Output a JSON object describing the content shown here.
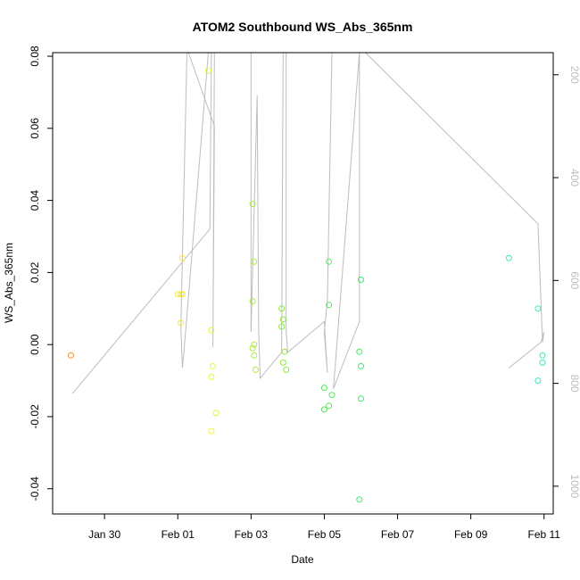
{
  "chart_data": {
    "type": "scatter",
    "title": "ATOM2 Southbound WS_Abs_365nm",
    "xlabel": "Date",
    "ylabel": "WS_Abs_365nm",
    "x_ticks": [
      {
        "label": "Jan 30",
        "value": "2019-01-30"
      },
      {
        "label": "Feb 01",
        "value": "2019-02-01"
      },
      {
        "label": "Feb 03",
        "value": "2019-02-03"
      },
      {
        "label": "Feb 05",
        "value": "2019-02-05"
      },
      {
        "label": "Feb 07",
        "value": "2019-02-07"
      },
      {
        "label": "Feb 09",
        "value": "2019-02-09"
      },
      {
        "label": "Feb 11",
        "value": "2019-02-11"
      }
    ],
    "xlim": [
      "2019-01-28 14:00",
      "2019-02-11 06:00"
    ],
    "ylim": [
      -0.047,
      0.081
    ],
    "y_ticks": [
      {
        "label": "-0.04",
        "value": -0.04
      },
      {
        "label": "-0.02",
        "value": -0.02
      },
      {
        "label": "0.00",
        "value": 0.0
      },
      {
        "label": "0.02",
        "value": 0.02
      },
      {
        "label": "0.04",
        "value": 0.04
      },
      {
        "label": "0.06",
        "value": 0.06
      },
      {
        "label": "0.08",
        "value": 0.08
      }
    ],
    "y2_ticks": [
      {
        "label": "200",
        "value": 200
      },
      {
        "label": "400",
        "value": 400
      },
      {
        "label": "600",
        "value": 600
      },
      {
        "label": "800",
        "value": 800
      },
      {
        "label": "1000",
        "value": 1000
      }
    ],
    "y2lim": [
      1054,
      157
    ],
    "y2_reversed": true,
    "grid": false,
    "points": [
      {
        "x": "2019-01-29 02:00",
        "y": -0.003,
        "color": "#ff8c1a"
      },
      {
        "x": "2019-02-01 00:00",
        "y": 0.014,
        "color": "#f4e83a"
      },
      {
        "x": "2019-02-01 02:00",
        "y": 0.014,
        "color": "#f4e83a"
      },
      {
        "x": "2019-02-01 03:00",
        "y": 0.014,
        "color": "#f4e83a"
      },
      {
        "x": "2019-02-01 02:00",
        "y": 0.006,
        "color": "#f4e83a"
      },
      {
        "x": "2019-02-01 03:00",
        "y": 0.024,
        "color": "#f4e83a"
      },
      {
        "x": "2019-02-01 20:00",
        "y": 0.076,
        "color": "#e9f53a"
      },
      {
        "x": "2019-02-01 22:00",
        "y": 0.004,
        "color": "#e9f53a"
      },
      {
        "x": "2019-02-01 23:00",
        "y": -0.006,
        "color": "#e9f53a"
      },
      {
        "x": "2019-02-01 22:00",
        "y": -0.009,
        "color": "#e9f53a"
      },
      {
        "x": "2019-02-02 01:00",
        "y": -0.019,
        "color": "#e9f53a"
      },
      {
        "x": "2019-02-01 22:00",
        "y": -0.024,
        "color": "#e9f53a"
      },
      {
        "x": "2019-02-03 01:00",
        "y": 0.039,
        "color": "#a8ee3c"
      },
      {
        "x": "2019-02-03 02:00",
        "y": 0.023,
        "color": "#a8ee3c"
      },
      {
        "x": "2019-02-03 01:00",
        "y": 0.012,
        "color": "#a8ee3c"
      },
      {
        "x": "2019-02-03 02:00",
        "y": 0.0,
        "color": "#a8ee3c"
      },
      {
        "x": "2019-02-03 01:00",
        "y": -0.001,
        "color": "#a8ee3c"
      },
      {
        "x": "2019-02-03 02:00",
        "y": -0.003,
        "color": "#a8ee3c"
      },
      {
        "x": "2019-02-03 03:00",
        "y": -0.007,
        "color": "#a8ee3c"
      },
      {
        "x": "2019-02-03 20:00",
        "y": 0.01,
        "color": "#8ae83e"
      },
      {
        "x": "2019-02-03 21:00",
        "y": 0.007,
        "color": "#8ae83e"
      },
      {
        "x": "2019-02-03 20:00",
        "y": 0.005,
        "color": "#8ae83e"
      },
      {
        "x": "2019-02-03 22:00",
        "y": -0.002,
        "color": "#8ae83e"
      },
      {
        "x": "2019-02-03 21:00",
        "y": -0.005,
        "color": "#8ae83e"
      },
      {
        "x": "2019-02-03 23:00",
        "y": -0.007,
        "color": "#8ae83e"
      },
      {
        "x": "2019-02-05 03:00",
        "y": 0.023,
        "color": "#55e857"
      },
      {
        "x": "2019-02-05 03:00",
        "y": 0.011,
        "color": "#55e857"
      },
      {
        "x": "2019-02-05 00:00",
        "y": -0.012,
        "color": "#55e857"
      },
      {
        "x": "2019-02-05 05:00",
        "y": -0.014,
        "color": "#55e857"
      },
      {
        "x": "2019-02-05 03:00",
        "y": -0.017,
        "color": "#55e857"
      },
      {
        "x": "2019-02-05 00:00",
        "y": -0.018,
        "color": "#55e857"
      },
      {
        "x": "2019-02-06 00:00",
        "y": 0.018,
        "color": "#3de86a"
      },
      {
        "x": "2019-02-05 23:00",
        "y": -0.002,
        "color": "#3de86a"
      },
      {
        "x": "2019-02-06 00:00",
        "y": -0.006,
        "color": "#3de86a"
      },
      {
        "x": "2019-02-06 00:00",
        "y": -0.015,
        "color": "#3de86a"
      },
      {
        "x": "2019-02-05 23:00",
        "y": -0.043,
        "color": "#3de86a"
      },
      {
        "x": "2019-02-10 01:00",
        "y": 0.024,
        "color": "#3ae8ac"
      },
      {
        "x": "2019-02-10 20:00",
        "y": 0.01,
        "color": "#35e6bf"
      },
      {
        "x": "2019-02-10 23:00",
        "y": -0.003,
        "color": "#35e6bf"
      },
      {
        "x": "2019-02-10 23:00",
        "y": -0.005,
        "color": "#35e6bf"
      },
      {
        "x": "2019-02-10 20:00",
        "y": -0.01,
        "color": "#35e6bf"
      }
    ],
    "line_color": "#bdbdbd",
    "line": [
      [
        "2019-01-29 03:00",
        820
      ],
      [
        "2019-02-01 21:00",
        500
      ],
      [
        "2019-02-01 22:00",
        150
      ],
      [
        "2019-02-01 22:00",
        155
      ],
      [
        "2019-02-01 20:00",
        150
      ],
      [
        "2019-02-01 04:00",
        740
      ],
      [
        "2019-02-01 03:00",
        770
      ],
      [
        "2019-02-01 02:00",
        690
      ],
      [
        "2019-02-01 06:00",
        150
      ],
      [
        "2019-02-01 07:00",
        155
      ],
      [
        "2019-02-02 00:00",
        300
      ],
      [
        "2019-02-01 23:00",
        730
      ],
      [
        "2019-02-02 00:00",
        150
      ],
      [
        "2019-02-03 00:00",
        150
      ],
      [
        "2019-02-03 00:00",
        700
      ],
      [
        "2019-02-03 04:00",
        240
      ],
      [
        "2019-02-03 05:00",
        700
      ],
      [
        "2019-02-03 06:00",
        790
      ],
      [
        "2019-02-03 20:00",
        740
      ],
      [
        "2019-02-03 21:00",
        150
      ],
      [
        "2019-02-03 23:00",
        150
      ],
      [
        "2019-02-03 23:00",
        700
      ],
      [
        "2019-02-04 00:00",
        740
      ],
      [
        "2019-02-05 00:00",
        680
      ],
      [
        "2019-02-05 02:00",
        780
      ],
      [
        "2019-02-05 00:00",
        700
      ],
      [
        "2019-02-05 02:00",
        640
      ],
      [
        "2019-02-05 05:00",
        150
      ],
      [
        "2019-02-05 23:00",
        150
      ],
      [
        "2019-02-05 23:00",
        680
      ],
      [
        "2019-02-05 06:00",
        810
      ],
      [
        "2019-02-05 23:00",
        155
      ],
      [
        "2019-02-06 00:00",
        150
      ],
      [
        "2019-02-06 00:00",
        150
      ],
      [
        "2019-02-06 03:00",
        150
      ],
      [
        "2019-02-10 20:00",
        490
      ],
      [
        "2019-02-10 23:00",
        720
      ],
      [
        "2019-02-11 00:00",
        700
      ],
      [
        "2019-02-10 22:00",
        720
      ],
      [
        "2019-02-10 01:00",
        770
      ]
    ]
  }
}
